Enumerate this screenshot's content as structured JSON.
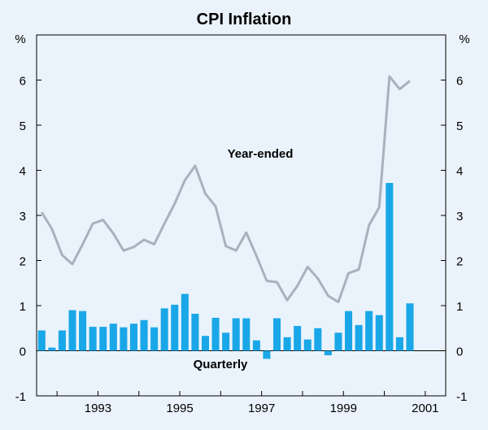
{
  "chart_data": {
    "type": "bar+line",
    "title": "CPI Inflation",
    "unit_left": "%",
    "unit_right": "%",
    "ylim": [
      -1,
      7
    ],
    "yticks": [
      -1,
      0,
      1,
      2,
      3,
      4,
      5,
      6
    ],
    "xlim": [
      1991.5,
      2001.5
    ],
    "x_tick_labels": [
      {
        "label": "1993",
        "x": 1993
      },
      {
        "label": "1995",
        "x": 1995
      },
      {
        "label": "1997",
        "x": 1997
      },
      {
        "label": "1999",
        "x": 1999
      },
      {
        "label": "2001",
        "x": 2001
      }
    ],
    "quarters_start": 1991.5,
    "annotations": {
      "line": "Year-ended",
      "bars": "Quarterly"
    },
    "series": [
      {
        "name": "Quarterly",
        "type": "bar",
        "color": "#1aa7e8",
        "values": [
          0.45,
          0.07,
          0.45,
          0.9,
          0.88,
          0.53,
          0.53,
          0.6,
          0.52,
          0.6,
          0.68,
          0.52,
          0.94,
          1.02,
          1.26,
          0.82,
          0.33,
          0.73,
          0.4,
          0.72,
          0.72,
          0.23,
          -0.18,
          0.72,
          0.3,
          0.55,
          0.25,
          0.5,
          -0.1,
          0.4,
          0.88,
          0.57,
          0.88,
          0.79,
          3.72,
          0.3,
          1.05
        ]
      },
      {
        "name": "Year-ended",
        "type": "line",
        "color": "#a9b2bc",
        "values": [
          3.07,
          2.7,
          2.12,
          1.92,
          2.36,
          2.82,
          2.9,
          2.6,
          2.22,
          2.3,
          2.46,
          2.36,
          2.82,
          3.26,
          3.78,
          4.1,
          3.48,
          3.2,
          2.32,
          2.22,
          2.62,
          2.1,
          1.55,
          1.52,
          1.12,
          1.44,
          1.86,
          1.6,
          1.22,
          1.08,
          1.72,
          1.8,
          2.78,
          3.18,
          6.08,
          5.8,
          5.98
        ]
      }
    ]
  }
}
